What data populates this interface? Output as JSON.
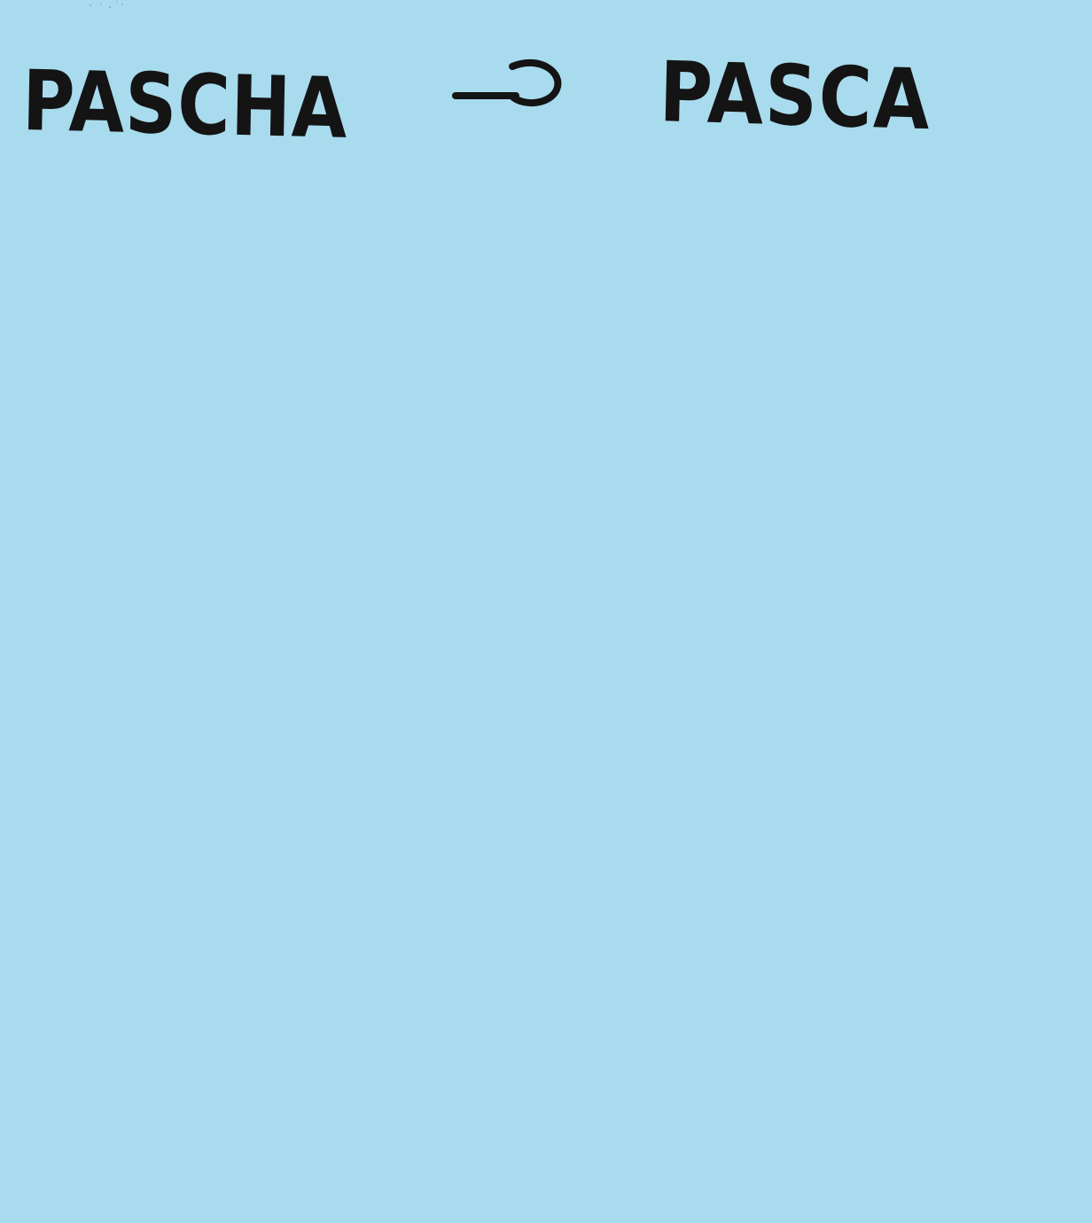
{
  "note": {
    "background_color": "#a8dbee",
    "ink_color": "#141414",
    "source_word": "PASCHA",
    "target_word": "PASCA",
    "arrow_icon": "right-arrow-icon"
  }
}
